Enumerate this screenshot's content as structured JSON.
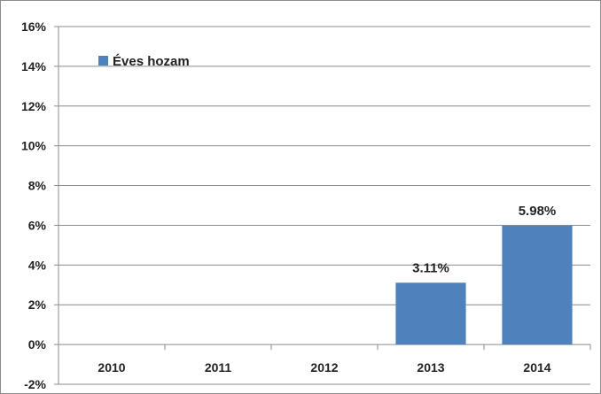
{
  "chart_data": {
    "type": "bar",
    "categories": [
      "2010",
      "2011",
      "2012",
      "2013",
      "2014"
    ],
    "series": [
      {
        "name": "Éves hozam",
        "values": [
          null,
          null,
          null,
          3.11,
          5.98
        ],
        "color": "#4f81bd"
      }
    ],
    "data_labels": [
      "",
      "",
      "",
      "3.11%",
      "5.98%"
    ],
    "y_ticks": [
      "-2%",
      "0%",
      "2%",
      "4%",
      "6%",
      "8%",
      "10%",
      "12%",
      "14%",
      "16%"
    ],
    "ylim": [
      -2,
      16
    ],
    "y_tick_step": 2,
    "grid": true,
    "legend_position": "top-left",
    "title": "",
    "xlabel": "",
    "ylabel": ""
  }
}
